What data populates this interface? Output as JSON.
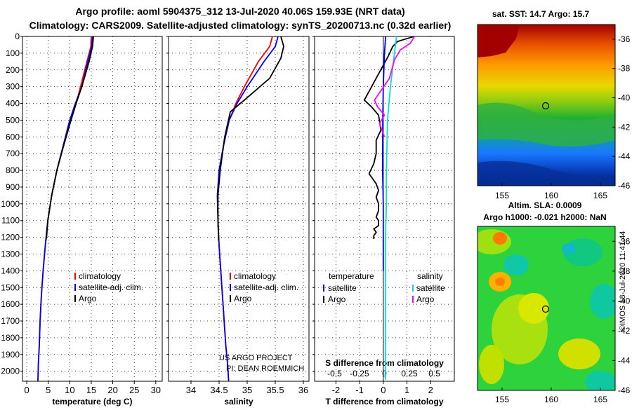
{
  "title_line1": "Argo profile: aoml 5904375_312 13-Jul-2020 40.06S 159.93E (NRT data)",
  "title_line2": "Climatology: CARS2009. Satellite-adjusted climatology: synTS_20200713.nc (0.32d earlier)",
  "colors": {
    "clim": "#ff0000",
    "satclim": "#0000ff",
    "argo": "#000000",
    "sal_sat": "#00e0e0",
    "sal_argo": "#ff00ff"
  },
  "chart_data": [
    {
      "type": "line",
      "id": "temperature",
      "xlabel": "temperature (deg C)",
      "xlim": [
        -1,
        31.5
      ],
      "ylim": [
        2060,
        0
      ],
      "xticks": [
        0,
        5,
        10,
        15,
        20,
        25,
        30
      ],
      "yticks": [
        0,
        100,
        200,
        300,
        400,
        500,
        600,
        700,
        800,
        900,
        1000,
        1100,
        1200,
        1300,
        1400,
        1500,
        1600,
        1700,
        1800,
        1900,
        2000
      ],
      "legend": {
        "clim": "climatology",
        "satclim": "satellite-adj. clim.",
        "argo": "Argo"
      },
      "series": [
        {
          "name": "climatology",
          "color": "clim",
          "x": [
            15,
            14.9,
            14,
            12.5,
            11.5,
            10,
            8.5,
            7,
            5.8,
            4.9,
            4.3,
            3.8,
            3.4,
            3.1,
            2.9,
            2.7,
            2.6
          ],
          "y": [
            0,
            60,
            150,
            300,
            400,
            500,
            650,
            800,
            950,
            1100,
            1250,
            1400,
            1550,
            1700,
            1850,
            1950,
            2060
          ]
        },
        {
          "name": "satellite-adj. clim.",
          "color": "satclim",
          "x": [
            15.3,
            15.1,
            14.2,
            12.8,
            11.3,
            10,
            8.5,
            7,
            5.8,
            4.9,
            4.3,
            3.8,
            3.4,
            3.1,
            2.9,
            2.7,
            2.6
          ],
          "y": [
            0,
            60,
            150,
            300,
            400,
            500,
            650,
            800,
            950,
            1100,
            1250,
            1400,
            1550,
            1700,
            1850,
            1950,
            2060
          ]
        },
        {
          "name": "Argo",
          "color": "argo",
          "x": [
            15.5,
            15.3,
            14.5,
            12.8,
            11.5,
            10.3,
            8.6,
            7,
            5.8,
            4.9,
            4.6,
            4.4
          ],
          "y": [
            0,
            60,
            150,
            300,
            400,
            500,
            650,
            800,
            950,
            1100,
            1200,
            1220
          ]
        }
      ]
    },
    {
      "type": "line",
      "id": "salinity",
      "xlabel": "salinity",
      "xlim": [
        33.6,
        36.1
      ],
      "ylim": [
        2060,
        0
      ],
      "xticks": [
        34,
        34.5,
        35,
        35.5,
        36
      ],
      "legend": {
        "clim": "climatology",
        "satclim": "satellite-adj. clim.",
        "argo": "Argo"
      },
      "footer": [
        "US ARGO PROJECT",
        "PI: DEAN ROEMMICH"
      ],
      "series": [
        {
          "name": "climatology",
          "color": "clim",
          "x": [
            35.45,
            35.4,
            35.2,
            34.95,
            34.8,
            34.68,
            34.58,
            34.5,
            34.47,
            34.48,
            34.5,
            34.53,
            34.56,
            34.59,
            34.62,
            34.65,
            34.67
          ],
          "y": [
            0,
            60,
            150,
            300,
            400,
            500,
            650,
            800,
            950,
            1100,
            1250,
            1400,
            1550,
            1700,
            1850,
            1950,
            2060
          ]
        },
        {
          "name": "satellite-adj. clim.",
          "color": "satclim",
          "x": [
            35.55,
            35.5,
            35.3,
            35.0,
            34.82,
            34.68,
            34.58,
            34.5,
            34.47,
            34.48,
            34.5,
            34.53,
            34.56,
            34.59,
            34.62,
            34.65,
            34.67
          ],
          "y": [
            0,
            60,
            150,
            300,
            400,
            500,
            650,
            800,
            950,
            1100,
            1250,
            1400,
            1550,
            1700,
            1850,
            1950,
            2060
          ]
        },
        {
          "name": "Argo",
          "color": "argo",
          "x": [
            35.6,
            35.65,
            35.6,
            35.4,
            34.95,
            34.7,
            34.6,
            34.52,
            34.48,
            34.48,
            34.49,
            34.49
          ],
          "y": [
            0,
            60,
            130,
            250,
            380,
            450,
            600,
            800,
            950,
            1100,
            1200,
            1220
          ]
        }
      ]
    },
    {
      "type": "line",
      "id": "difference",
      "xlabel": "T difference from climatology",
      "xlabel2": "S difference from climatology",
      "xlim": [
        -2.9,
        3.0
      ],
      "ylim": [
        2060,
        0
      ],
      "xticks": [
        -2,
        -1,
        0,
        1,
        2
      ],
      "xticks2": [
        -0.5,
        -0.25,
        0,
        0.25,
        0.5
      ],
      "xticks2_labels": [
        "-0.5",
        "-0.25",
        "0",
        "0.25",
        "0.5"
      ],
      "legend": {
        "temperature": "temperature",
        "salinity": "salinity",
        "satellite": "satellite",
        "argo": "Argo"
      },
      "series": [
        {
          "name": "T Argo",
          "color": "argo",
          "x": [
            1.3,
            0.6,
            0.4,
            0.2,
            -0.3,
            -0.8,
            -0.5,
            -0.2,
            -0.1,
            -0.3,
            -0.3,
            -0.4,
            -0.6,
            -0.3,
            -0.2,
            -0.3,
            -0.2,
            -0.2,
            -0.3,
            -0.2,
            -0.2,
            -0.4,
            -0.3,
            -0.4,
            -0.4
          ],
          "y": [
            0,
            30,
            60,
            120,
            250,
            380,
            420,
            470,
            560,
            620,
            700,
            760,
            820,
            880,
            920,
            960,
            1000,
            1040,
            1080,
            1100,
            1130,
            1150,
            1170,
            1190,
            1210
          ]
        },
        {
          "name": "T satellite",
          "color": "satclim",
          "x": [
            0.1,
            0.05,
            0,
            -0.02,
            -0.03,
            0,
            0,
            0
          ],
          "y": [
            0,
            100,
            300,
            500,
            800,
            1000,
            1200,
            1400
          ]
        },
        {
          "name": "S satellite",
          "color": "sal_sat",
          "x": [
            0.12,
            0.1,
            0.06,
            0.03,
            0.02,
            0.02,
            0.01,
            0.01,
            0.01,
            0.01
          ],
          "y": [
            0,
            100,
            300,
            500,
            800,
            1000,
            1200,
            1400,
            1700,
            2050
          ]
        },
        {
          "name": "S Argo",
          "color": "sal_argo",
          "x": [
            0.3,
            0.26,
            0.16,
            0.1,
            0.05,
            -0.1,
            -0.07,
            0.0,
            -0.05,
            0.0
          ],
          "y": [
            0,
            40,
            80,
            140,
            250,
            380,
            420,
            470,
            520,
            600
          ]
        }
      ]
    }
  ],
  "maps": [
    {
      "id": "sst",
      "title": "sat. SST: 14.7 Argo: 15.7",
      "xticks": [
        "155",
        "160",
        "165"
      ],
      "yticks": [
        "-36",
        "-38",
        "-40",
        "-42",
        "-44",
        "-46"
      ]
    },
    {
      "id": "sla",
      "title1": "Altim. SLA: 0.0009",
      "title2": "Argo h1000: -0.021 h2000: NaN",
      "xticks": [
        "155",
        "160",
        "165"
      ],
      "yticks": [
        "-36",
        "-38",
        "-40",
        "-42",
        "-44",
        "-46"
      ]
    }
  ],
  "credit": "©IMOS 18-Jul-2020 11:41:44"
}
